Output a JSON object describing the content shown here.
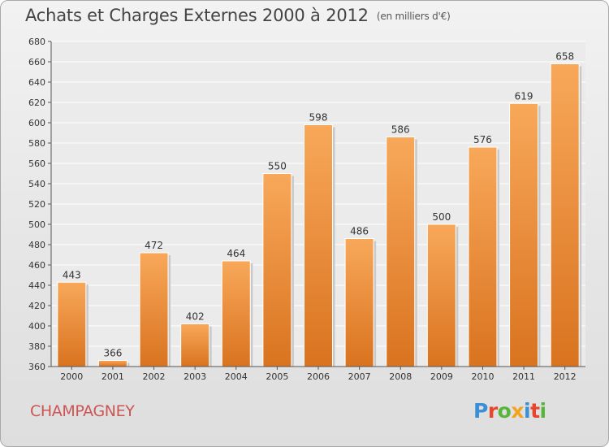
{
  "header": {
    "title": "Achats et Charges Externes 2000 à 2012",
    "unit": "(en milliers d'€)"
  },
  "footer": {
    "commune": "CHAMPAGNEY",
    "logo_text": "Proxiti"
  },
  "colors": {
    "bar_light": "#f8a85a",
    "bar_dark": "#d9731f",
    "commune": "#cc5555",
    "logo": [
      "#3a8fd6",
      "#e8452d",
      "#58b53c",
      "#f2a41c",
      "#3a8fd6",
      "#e8452d",
      "#58b53c"
    ]
  },
  "chart_data": {
    "type": "bar",
    "title": "Achats et Charges Externes 2000 à 2012",
    "xlabel": "",
    "ylabel": "",
    "categories": [
      "2000",
      "2001",
      "2002",
      "2003",
      "2004",
      "2005",
      "2006",
      "2007",
      "2008",
      "2009",
      "2010",
      "2011",
      "2012"
    ],
    "values": [
      443,
      366,
      472,
      402,
      464,
      550,
      598,
      486,
      586,
      500,
      576,
      619,
      658
    ],
    "ylim": [
      360,
      680
    ],
    "yticks": [
      360,
      380,
      400,
      420,
      440,
      460,
      480,
      500,
      520,
      540,
      560,
      580,
      600,
      620,
      640,
      660,
      680
    ],
    "grid": true
  }
}
